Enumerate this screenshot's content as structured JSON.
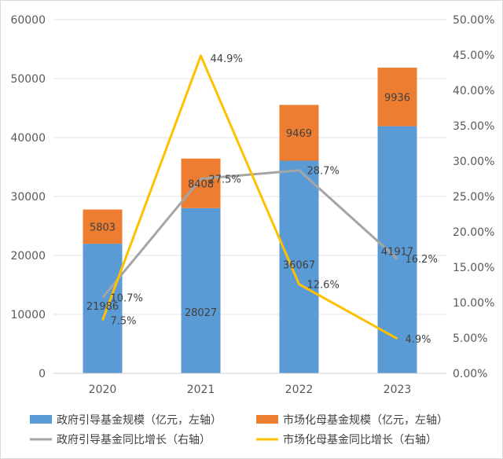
{
  "chart_data": {
    "type": "bar",
    "stacked": true,
    "categories": [
      "2020",
      "2021",
      "2022",
      "2023"
    ],
    "y_left": {
      "ylim": [
        0,
        60000
      ],
      "ticks": [
        "0",
        "10000",
        "20000",
        "30000",
        "40000",
        "50000",
        "60000"
      ]
    },
    "y_right": {
      "ylim": [
        0,
        50
      ],
      "ticks": [
        "0.00%",
        "5.00%",
        "10.00%",
        "15.00%",
        "20.00%",
        "25.00%",
        "30.00%",
        "35.00%",
        "40.00%",
        "45.00%",
        "50.00%"
      ]
    },
    "series": [
      {
        "name": "政府引导基金规模（亿元，左轴）",
        "kind": "bar",
        "axis": "left",
        "values": [
          21986,
          28027,
          36067,
          41917
        ],
        "labels": [
          "21986",
          "28027",
          "36067",
          "41917"
        ],
        "color": "#5b9bd5"
      },
      {
        "name": "市场化母基金规模（亿元，左轴）",
        "kind": "bar",
        "axis": "left",
        "values": [
          5803,
          8408,
          9469,
          9936
        ],
        "labels": [
          "5803",
          "8408",
          "9469",
          "9936"
        ],
        "color": "#ed7d31"
      },
      {
        "name": "政府引导基金同比增长（右轴）",
        "kind": "line",
        "axis": "right",
        "values": [
          10.7,
          27.5,
          28.7,
          16.2
        ],
        "labels": [
          "10.7%",
          "27.5%",
          "28.7%",
          "16.2%"
        ],
        "color": "#a5a5a5"
      },
      {
        "name": "市场化母基金同比增长（右轴）",
        "kind": "line",
        "axis": "right",
        "values": [
          7.5,
          44.9,
          12.6,
          4.9
        ],
        "labels": [
          "7.5%",
          "44.9%",
          "12.6%",
          "4.9%"
        ],
        "color": "#ffc000"
      }
    ],
    "grid": true,
    "legend": "bottom"
  }
}
